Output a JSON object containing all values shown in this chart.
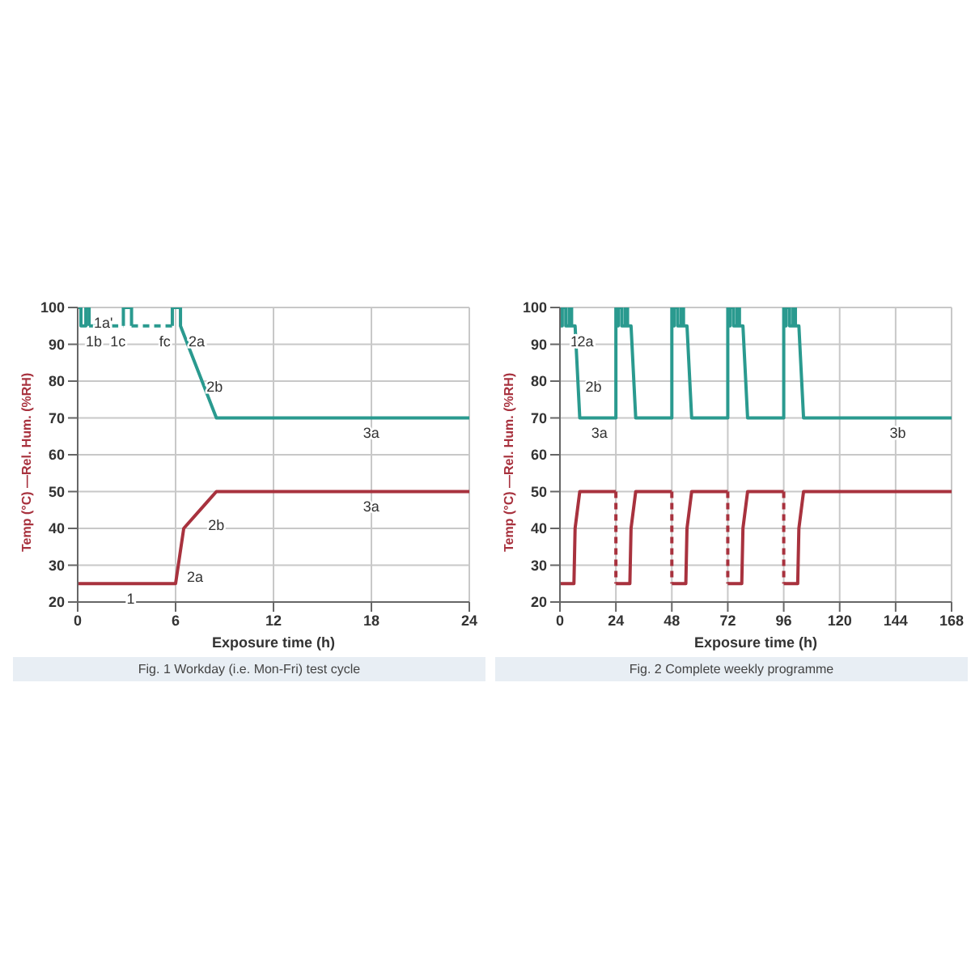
{
  "chart_data": [
    {
      "type": "line",
      "title": "Fig. 1  Workday (i.e. Mon-Fri) test cycle",
      "xlabel": "Exposure time (h)",
      "ylabel": "Temp (°C) —Rel. Hum. (%RH)",
      "xlim": [
        0,
        24
      ],
      "xticks": [
        0,
        6,
        12,
        18,
        24
      ],
      "ylim": [
        20,
        100
      ],
      "yticks": [
        20,
        30,
        40,
        50,
        60,
        70,
        80,
        90,
        100
      ],
      "grid": true,
      "series": [
        {
          "color": "#2a9a8f",
          "line_style": "solid",
          "x": [
            0,
            0.2,
            0.2,
            0.5,
            0.5,
            0.7,
            0.7
          ],
          "values": [
            100,
            100,
            95,
            95,
            100,
            100,
            95
          ]
        },
        {
          "color": "#2a9a8f",
          "line_style": "solid",
          "x": [
            2.8,
            2.8,
            3.3,
            3.3
          ],
          "values": [
            95,
            100,
            100,
            95
          ]
        },
        {
          "color": "#2a9a8f",
          "line_style": "solid",
          "x": [
            5.8,
            5.8,
            6.3,
            6.3,
            8.5,
            24
          ],
          "values": [
            95,
            100,
            100,
            95,
            70,
            70
          ]
        },
        {
          "color": "#2a9a8f",
          "line_style": "dashed",
          "x": [
            0.7,
            2.8
          ],
          "values": [
            95,
            95
          ]
        },
        {
          "color": "#2a9a8f",
          "line_style": "dashed",
          "x": [
            3.3,
            5.8
          ],
          "values": [
            95,
            95
          ]
        },
        {
          "color": "#a8323e",
          "line_style": "solid",
          "x": [
            0,
            6,
            6.5,
            8.5,
            24
          ],
          "values": [
            25,
            25,
            40,
            50,
            50
          ]
        }
      ],
      "annotations": [
        {
          "text": "1a'",
          "x": 0.5,
          "y": 100
        },
        {
          "text": "1b",
          "x": 0,
          "y": 95
        },
        {
          "text": "1c",
          "x": 1.5,
          "y": 95
        },
        {
          "text": "fc",
          "x": 4.5,
          "y": 95
        },
        {
          "text": "2a",
          "x": 6.3,
          "y": 95
        },
        {
          "text": "2b",
          "x": 7.4,
          "y": 82.5
        },
        {
          "text": "3a",
          "x": 17,
          "y": 70
        },
        {
          "text": "1",
          "x": 2.5,
          "y": 25
        },
        {
          "text": "2a",
          "x": 6.2,
          "y": 31
        },
        {
          "text": "2b",
          "x": 7.5,
          "y": 45
        },
        {
          "text": "3a",
          "x": 17,
          "y": 50
        }
      ]
    },
    {
      "type": "line",
      "title": "Fig. 2  Complete weekly programme",
      "xlabel": "Exposure time (h)",
      "ylabel": "Temp (°C) —Rel. Hum. (%RH)",
      "xlim": [
        0,
        168
      ],
      "xticks": [
        0,
        24,
        48,
        72,
        96,
        120,
        144,
        168
      ],
      "ylim": [
        20,
        100
      ],
      "yticks": [
        20,
        30,
        40,
        50,
        60,
        70,
        80,
        90,
        100
      ],
      "grid": true,
      "series": [
        {
          "color": "#2a9a8f",
          "line_style": "solid",
          "x": [
            0,
            0,
            1,
            1,
            2.5,
            2.5,
            4,
            4,
            5,
            5,
            6.5,
            8.5,
            24,
            24,
            24,
            25,
            25,
            26.5,
            26.5,
            28,
            28,
            29,
            29,
            30.5,
            32.5,
            48,
            48,
            48,
            49,
            49,
            50.5,
            50.5,
            52,
            52,
            53,
            53,
            54.5,
            56.5,
            72,
            72,
            72,
            73,
            73,
            74.5,
            74.5,
            76,
            76,
            77,
            77,
            78.5,
            80.5,
            96,
            96,
            96,
            97,
            97,
            98.5,
            98.5,
            100,
            100,
            101,
            101,
            102.5,
            104.5,
            168
          ],
          "values": [
            100,
            95,
            95,
            100,
            100,
            95,
            95,
            100,
            100,
            95,
            95,
            70,
            70,
            100,
            95,
            95,
            100,
            100,
            95,
            95,
            100,
            100,
            95,
            95,
            70,
            70,
            100,
            95,
            95,
            100,
            100,
            95,
            95,
            100,
            100,
            95,
            95,
            70,
            70,
            100,
            95,
            95,
            100,
            100,
            95,
            95,
            100,
            100,
            95,
            95,
            70,
            70,
            100,
            95,
            95,
            100,
            100,
            95,
            95,
            100,
            100,
            95,
            95,
            70,
            70
          ]
        },
        {
          "color": "#a8323e",
          "line_style": "solid",
          "x": [
            0,
            6,
            6.5,
            8.5,
            24
          ],
          "values": [
            25,
            25,
            40,
            50,
            50
          ]
        },
        {
          "color": "#a8323e",
          "line_style": "solid",
          "x": [
            24,
            30,
            30.5,
            32.5,
            48
          ],
          "values": [
            25,
            25,
            40,
            50,
            50
          ]
        },
        {
          "color": "#a8323e",
          "line_style": "solid",
          "x": [
            48,
            54,
            54.5,
            56.5,
            72
          ],
          "values": [
            25,
            25,
            40,
            50,
            50
          ]
        },
        {
          "color": "#a8323e",
          "line_style": "solid",
          "x": [
            72,
            78,
            78.5,
            80.5,
            96
          ],
          "values": [
            25,
            25,
            40,
            50,
            50
          ]
        },
        {
          "color": "#a8323e",
          "line_style": "solid",
          "x": [
            96,
            102,
            102.5,
            104.5,
            168
          ],
          "values": [
            25,
            25,
            40,
            50,
            50
          ]
        },
        {
          "color": "#a8323e",
          "line_style": "dashed",
          "x": [
            24,
            24
          ],
          "values": [
            50,
            25
          ]
        },
        {
          "color": "#a8323e",
          "line_style": "dashed",
          "x": [
            48,
            48
          ],
          "values": [
            50,
            25
          ]
        },
        {
          "color": "#a8323e",
          "line_style": "dashed",
          "x": [
            72,
            72
          ],
          "values": [
            50,
            25
          ]
        },
        {
          "color": "#a8323e",
          "line_style": "dashed",
          "x": [
            96,
            96
          ],
          "values": [
            50,
            25
          ]
        }
      ],
      "annotations": [
        {
          "text": "1",
          "x": 1,
          "y": 95
        },
        {
          "text": "2a",
          "x": 4,
          "y": 95
        },
        {
          "text": "2b",
          "x": 7.5,
          "y": 82.5
        },
        {
          "text": "3a",
          "x": 10,
          "y": 70
        },
        {
          "text": "3b",
          "x": 138,
          "y": 70
        }
      ]
    }
  ]
}
